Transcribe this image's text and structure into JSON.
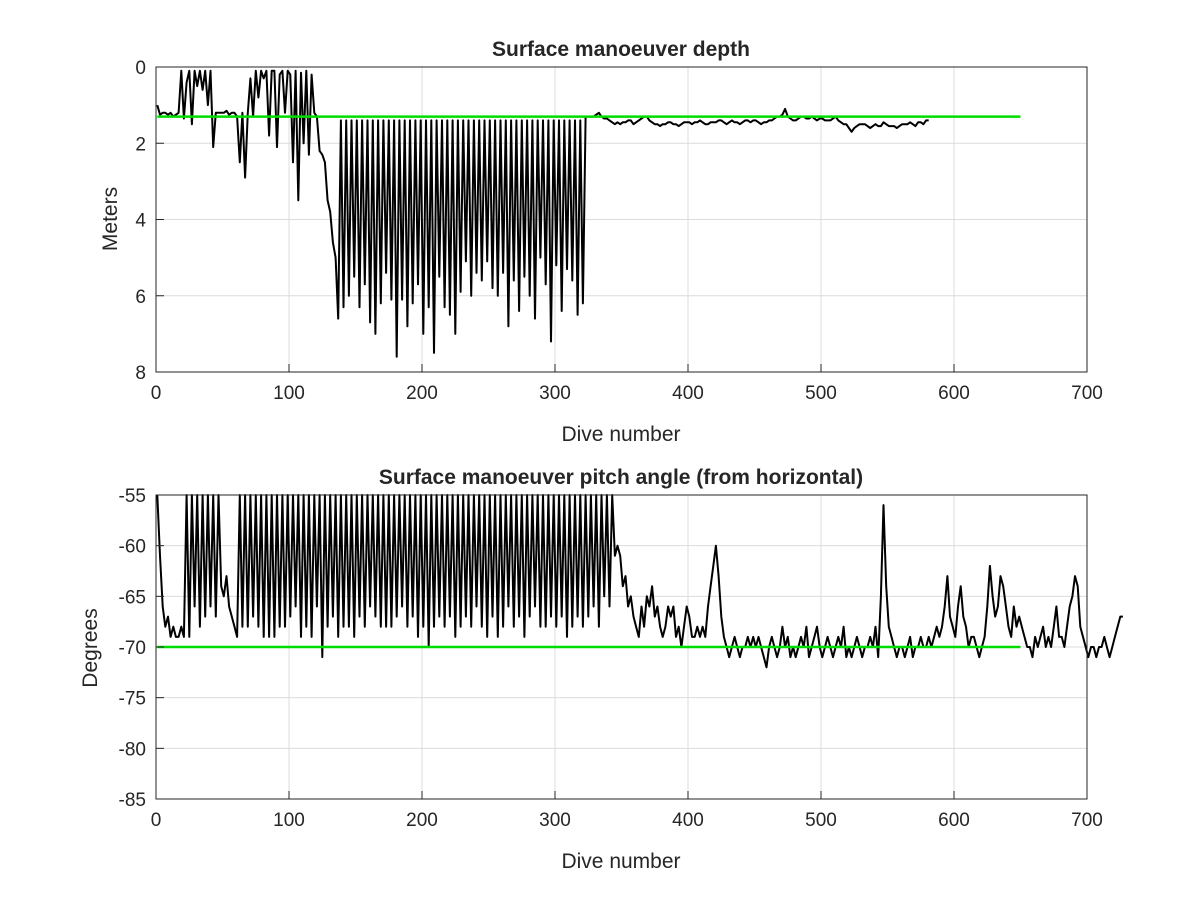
{
  "chart_data": [
    {
      "type": "line",
      "title": "Surface manoeuver depth",
      "xlabel": "Dive number",
      "ylabel": "Meters",
      "xlim": [
        0,
        700
      ],
      "ylim": [
        0,
        8
      ],
      "y_reversed": true,
      "grid": true,
      "xticks": [
        0,
        100,
        200,
        300,
        400,
        500,
        600,
        700
      ],
      "yticks": [
        0,
        2,
        4,
        6,
        8
      ],
      "series": [
        {
          "color": "#000000",
          "sampling": "every 2 dives (approximate reading)",
          "x_start": 1,
          "x_step": 2,
          "values": [
            1.0,
            1.25,
            1.2,
            1.2,
            1.25,
            1.2,
            1.3,
            1.25,
            1.2,
            0.1,
            1.35,
            0.4,
            0.1,
            1.5,
            0.1,
            0.5,
            0.1,
            0.6,
            0.1,
            1.0,
            0.1,
            2.1,
            1.2,
            1.2,
            1.2,
            1.2,
            1.15,
            1.25,
            1.2,
            1.2,
            1.3,
            2.5,
            1.2,
            2.9,
            1.2,
            0.3,
            1.3,
            0.1,
            0.8,
            0.1,
            0.3,
            0.1,
            1.8,
            0.1,
            0.1,
            2.1,
            0.2,
            0.1,
            1.2,
            0.1,
            0.2,
            2.5,
            0.1,
            3.5,
            0.15,
            2.0,
            0.1,
            2.3,
            0.2,
            1.2,
            1.3,
            2.2,
            2.3,
            2.5,
            3.5,
            3.8,
            4.6,
            5.0,
            6.6,
            1.4,
            6.3,
            1.4,
            6.0,
            1.4,
            5.5,
            1.4,
            6.3,
            1.4,
            5.7,
            1.4,
            6.7,
            1.4,
            7.0,
            1.4,
            6.2,
            1.4,
            5.4,
            1.4,
            6.1,
            1.4,
            7.6,
            1.4,
            6.1,
            1.4,
            6.8,
            1.4,
            6.2,
            1.4,
            5.7,
            1.4,
            7.0,
            1.4,
            6.3,
            1.4,
            7.5,
            1.4,
            5.5,
            1.4,
            6.3,
            1.4,
            6.5,
            1.4,
            7.0,
            1.4,
            5.9,
            1.4,
            5.1,
            1.4,
            6.0,
            1.4,
            5.4,
            1.4,
            5.6,
            1.4,
            5.1,
            1.4,
            5.8,
            1.4,
            6.0,
            1.4,
            5.4,
            1.4,
            6.8,
            1.4,
            5.6,
            1.4,
            6.4,
            1.4,
            5.5,
            1.4,
            6.0,
            1.4,
            6.6,
            1.4,
            5.0,
            1.4,
            5.7,
            1.4,
            7.2,
            1.4,
            5.2,
            1.4,
            6.4,
            1.4,
            5.3,
            1.4,
            5.6,
            1.4,
            6.5,
            1.4,
            6.2,
            1.3,
            1.3,
            1.3,
            1.3,
            1.25,
            1.2,
            1.3,
            1.35,
            1.35,
            1.4,
            1.45,
            1.5,
            1.45,
            1.5,
            1.45,
            1.45,
            1.4,
            1.4,
            1.5,
            1.45,
            1.4,
            1.35,
            1.3,
            1.3,
            1.4,
            1.45,
            1.5,
            1.5,
            1.55,
            1.5,
            1.5,
            1.45,
            1.45,
            1.5,
            1.5,
            1.55,
            1.5,
            1.45,
            1.45,
            1.45,
            1.5,
            1.45,
            1.45,
            1.4,
            1.45,
            1.5,
            1.5,
            1.45,
            1.45,
            1.45,
            1.4,
            1.4,
            1.45,
            1.5,
            1.45,
            1.4,
            1.45,
            1.45,
            1.5,
            1.45,
            1.4,
            1.4,
            1.45,
            1.4,
            1.4,
            1.45,
            1.5,
            1.45,
            1.45,
            1.4,
            1.4,
            1.35,
            1.3,
            1.3,
            1.25,
            1.1,
            1.3,
            1.35,
            1.4,
            1.4,
            1.35,
            1.3,
            1.3,
            1.35,
            1.35,
            1.3,
            1.35,
            1.4,
            1.35,
            1.35,
            1.4,
            1.4,
            1.4,
            1.35,
            1.3,
            1.4,
            1.45,
            1.5,
            1.5,
            1.6,
            1.7,
            1.6,
            1.55,
            1.5,
            1.5,
            1.5,
            1.55,
            1.6,
            1.55,
            1.5,
            1.55,
            1.55,
            1.45,
            1.5,
            1.55,
            1.55,
            1.55,
            1.6,
            1.55,
            1.5,
            1.5,
            1.5,
            1.45,
            1.5,
            1.55,
            1.45,
            1.45,
            1.5,
            1.4,
            1.4
          ]
        },
        {
          "color": "#00dd00",
          "x": [
            1,
            650
          ],
          "values": [
            1.3,
            1.3
          ]
        }
      ]
    },
    {
      "type": "line",
      "title": "Surface manoeuver pitch angle (from horizontal)",
      "xlabel": "Dive number",
      "ylabel": "Degrees",
      "xlim": [
        0,
        700
      ],
      "ylim": [
        -85,
        -55
      ],
      "grid": true,
      "xticks": [
        0,
        100,
        200,
        300,
        400,
        500,
        600,
        700
      ],
      "yticks": [
        -55,
        -60,
        -65,
        -70,
        -75,
        -80,
        -85
      ],
      "series": [
        {
          "color": "#000000",
          "sampling": "every 2 dives (approximate reading)",
          "x_start": 1,
          "x_step": 2,
          "values": [
            -55,
            -61,
            -66,
            -68,
            -67,
            -69,
            -68,
            -69,
            -69,
            -68,
            -69,
            -55,
            -69,
            -55,
            -66,
            -55,
            -68,
            -55,
            -67,
            -55,
            -66,
            -55,
            -67,
            -55,
            -64,
            -65,
            -63,
            -66,
            -67,
            -68,
            -69,
            -55,
            -68,
            -55,
            -68,
            -55,
            -67,
            -55,
            -68,
            -55,
            -69,
            -55,
            -69,
            -55,
            -69,
            -55,
            -68,
            -55,
            -68,
            -55,
            -67,
            -55,
            -66,
            -55,
            -69,
            -55,
            -68,
            -55,
            -69,
            -55,
            -66,
            -55,
            -71,
            -55,
            -68,
            -55,
            -67,
            -55,
            -69,
            -55,
            -68,
            -55,
            -68,
            -55,
            -69,
            -55,
            -67,
            -55,
            -68,
            -55,
            -66,
            -55,
            -67,
            -55,
            -68,
            -55,
            -68,
            -55,
            -68,
            -55,
            -67,
            -55,
            -66,
            -55,
            -68,
            -55,
            -67,
            -55,
            -69,
            -55,
            -68,
            -55,
            -70,
            -55,
            -68,
            -55,
            -67,
            -55,
            -68,
            -55,
            -67,
            -55,
            -69,
            -55,
            -68,
            -55,
            -67,
            -55,
            -68,
            -55,
            -66,
            -55,
            -68,
            -55,
            -69,
            -55,
            -67,
            -55,
            -69,
            -55,
            -68,
            -55,
            -66,
            -55,
            -68,
            -55,
            -67,
            -55,
            -69,
            -55,
            -67,
            -55,
            -66,
            -55,
            -68,
            -55,
            -68,
            -55,
            -67,
            -55,
            -68,
            -55,
            -67,
            -55,
            -69,
            -55,
            -68,
            -55,
            -67,
            -55,
            -68,
            -55,
            -67,
            -55,
            -66,
            -55,
            -68,
            -55,
            -65,
            -55,
            -66,
            -55,
            -61,
            -60,
            -61,
            -64,
            -63,
            -66,
            -65,
            -67,
            -68,
            -69,
            -66,
            -68,
            -65,
            -66,
            -64,
            -67,
            -66,
            -68,
            -69,
            -68,
            -66,
            -67,
            -66,
            -69,
            -68,
            -70,
            -68,
            -66,
            -67,
            -69,
            -69,
            -68,
            -69,
            -68,
            -69,
            -66,
            -64,
            -62,
            -60,
            -63,
            -67,
            -69,
            -70,
            -71,
            -70,
            -69,
            -70,
            -71,
            -70,
            -70,
            -69,
            -70,
            -69,
            -70,
            -69,
            -70,
            -71,
            -72,
            -70,
            -69,
            -70,
            -71,
            -70,
            -68,
            -70,
            -69,
            -71,
            -70,
            -71,
            -70,
            -69,
            -70,
            -68,
            -71,
            -70,
            -69,
            -68,
            -70,
            -71,
            -70,
            -69,
            -70,
            -71,
            -70,
            -69,
            -70,
            -68,
            -71,
            -70,
            -71,
            -70,
            -69,
            -70,
            -71,
            -70,
            -70,
            -69,
            -70,
            -68,
            -71,
            -65,
            -56,
            -64,
            -68,
            -69,
            -70,
            -71,
            -70,
            -70,
            -71,
            -70,
            -69,
            -71,
            -70,
            -70,
            -69,
            -70,
            -70,
            -69,
            -70,
            -69,
            -68,
            -69,
            -68,
            -66,
            -63,
            -67,
            -68,
            -69,
            -66,
            -64,
            -67,
            -68,
            -70,
            -69,
            -69,
            -70,
            -71,
            -70,
            -69,
            -66,
            -62,
            -65,
            -67,
            -66,
            -63,
            -64,
            -66,
            -68,
            -69,
            -66,
            -68,
            -67,
            -68,
            -69,
            -70,
            -70,
            -71,
            -69,
            -70,
            -69,
            -68,
            -70,
            -69,
            -70,
            -68,
            -66,
            -69,
            -69,
            -70,
            -68,
            -66,
            -65,
            -63,
            -64,
            -68,
            -69,
            -70,
            -71,
            -70,
            -70,
            -71,
            -70,
            -70,
            -69,
            -70,
            -71,
            -70,
            -69,
            -68,
            -67,
            -67
          ]
        },
        {
          "color": "#00dd00",
          "x": [
            1,
            650
          ],
          "values": [
            -70,
            -70
          ]
        }
      ]
    }
  ]
}
